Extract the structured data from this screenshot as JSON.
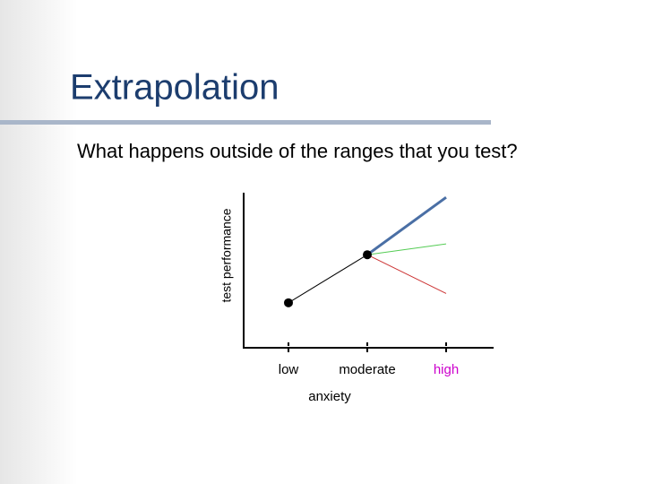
{
  "title": "Extrapolation",
  "subtitle": "What happens outside of the ranges that you test?",
  "chart_data": {
    "type": "line",
    "xlabel": "anxiety",
    "ylabel": "test performance",
    "categories": [
      "low",
      "moderate",
      "high"
    ],
    "category_label_colors": [
      "#000000",
      "#000000",
      "#cc00cc"
    ],
    "ylim": [
      0,
      10
    ],
    "series": [
      {
        "color": "#000000",
        "values": [
          2.9,
          6.0,
          null
        ],
        "marker": true,
        "width": 1
      },
      {
        "color": "#4a6fa5",
        "values": [
          null,
          6.0,
          9.7
        ],
        "marker": false,
        "width": 3
      },
      {
        "color": "#55cc55",
        "values": [
          null,
          6.0,
          6.7
        ],
        "marker": false,
        "width": 1
      },
      {
        "color": "#cc3333",
        "values": [
          null,
          6.0,
          3.5
        ],
        "marker": false,
        "width": 1
      }
    ]
  }
}
